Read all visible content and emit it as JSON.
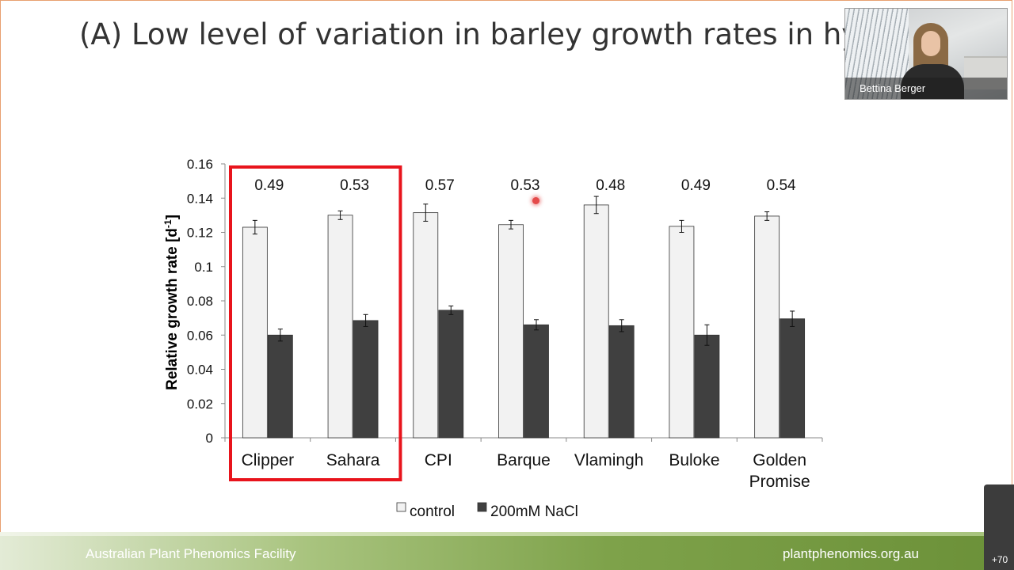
{
  "slide": {
    "title": "(A) Low level of variation in barley growth rates in hydro",
    "footer_left": "Australian Plant Phenomics Facility",
    "footer_right": "plantphenomics.org.au"
  },
  "video": {
    "participant_name": "Bettina Berger",
    "extra_participants": "+70"
  },
  "chart_data": {
    "type": "bar",
    "ylabel_main": "Relative growth rate [d",
    "ylabel_sup": "-1",
    "ylabel_end": "]",
    "ylim": [
      0,
      0.16
    ],
    "yticks": [
      "0",
      "0.02",
      "0.04",
      "0.06",
      "0.08",
      "0.1",
      "0.12",
      "0.14",
      "0.16"
    ],
    "categories": [
      {
        "lines": [
          "Clipper"
        ]
      },
      {
        "lines": [
          "Sahara"
        ]
      },
      {
        "lines": [
          "CPI"
        ]
      },
      {
        "lines": [
          "Barque"
        ]
      },
      {
        "lines": [
          "Vlamingh"
        ]
      },
      {
        "lines": [
          "Buloke"
        ]
      },
      {
        "lines": [
          "Golden",
          "Promise"
        ]
      }
    ],
    "ratio_labels": [
      "0.49",
      "0.53",
      "0.57",
      "0.53",
      "0.48",
      "0.49",
      "0.54"
    ],
    "series": [
      {
        "name": "control",
        "color": "#f2f2f2",
        "values": [
          0.123,
          0.13,
          0.1315,
          0.1245,
          0.136,
          0.1235,
          0.1295
        ],
        "errors": [
          0.004,
          0.0025,
          0.005,
          0.0025,
          0.005,
          0.0035,
          0.0025
        ]
      },
      {
        "name": "200mM NaCl",
        "color": "#404040",
        "values": [
          0.06,
          0.0685,
          0.0745,
          0.066,
          0.0655,
          0.06,
          0.0695
        ],
        "errors": [
          0.0035,
          0.0035,
          0.0025,
          0.003,
          0.0035,
          0.006,
          0.0045
        ]
      }
    ],
    "highlight_box": {
      "color": "#e8141c",
      "from_category": 0,
      "to_category": 1
    },
    "grid": false,
    "legend_position": "bottom"
  }
}
